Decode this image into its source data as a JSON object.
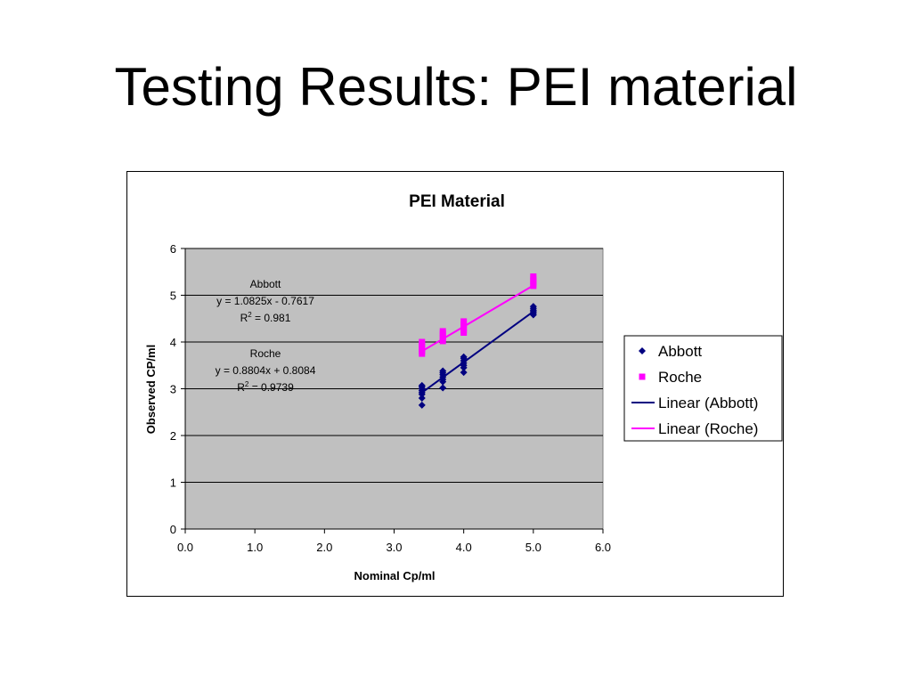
{
  "slide": {
    "title": "Testing Results: PEI material"
  },
  "chart_data": {
    "type": "scatter",
    "title": "PEI Material",
    "xlabel": "Nominal Cp/ml",
    "ylabel": "Observed CP/ml",
    "xlim": [
      0,
      6
    ],
    "ylim": [
      0,
      6
    ],
    "x_ticks": [
      "0.0",
      "1.0",
      "2.0",
      "3.0",
      "4.0",
      "5.0",
      "6.0"
    ],
    "y_ticks": [
      "0",
      "1",
      "2",
      "3",
      "4",
      "5",
      "6"
    ],
    "grid": "horizontal",
    "plot_background": "#c0c0c0",
    "legend_position": "right",
    "series": [
      {
        "name": "Abbott",
        "marker": "diamond",
        "color": "#000080",
        "points": [
          [
            3.4,
            2.65
          ],
          [
            3.4,
            2.8
          ],
          [
            3.4,
            2.88
          ],
          [
            3.4,
            2.92
          ],
          [
            3.4,
            2.96
          ],
          [
            3.4,
            3.0
          ],
          [
            3.4,
            3.04
          ],
          [
            3.4,
            3.07
          ],
          [
            3.7,
            3.02
          ],
          [
            3.7,
            3.15
          ],
          [
            3.7,
            3.2
          ],
          [
            3.7,
            3.25
          ],
          [
            3.7,
            3.3
          ],
          [
            3.7,
            3.34
          ],
          [
            3.7,
            3.38
          ],
          [
            4.0,
            3.35
          ],
          [
            4.0,
            3.45
          ],
          [
            4.0,
            3.5
          ],
          [
            4.0,
            3.55
          ],
          [
            4.0,
            3.6
          ],
          [
            4.0,
            3.65
          ],
          [
            4.0,
            3.68
          ],
          [
            5.0,
            4.58
          ],
          [
            5.0,
            4.62
          ],
          [
            5.0,
            4.65
          ],
          [
            5.0,
            4.68
          ],
          [
            5.0,
            4.72
          ],
          [
            5.0,
            4.76
          ]
        ]
      },
      {
        "name": "Roche",
        "marker": "square",
        "color": "#ff00ff",
        "points": [
          [
            3.4,
            3.75
          ],
          [
            3.4,
            3.8
          ],
          [
            3.4,
            3.85
          ],
          [
            3.4,
            3.9
          ],
          [
            3.4,
            3.95
          ],
          [
            3.4,
            4.0
          ],
          [
            3.7,
            4.02
          ],
          [
            3.7,
            4.08
          ],
          [
            3.7,
            4.13
          ],
          [
            3.7,
            4.18
          ],
          [
            3.7,
            4.23
          ],
          [
            4.0,
            4.2
          ],
          [
            4.0,
            4.26
          ],
          [
            4.0,
            4.32
          ],
          [
            4.0,
            4.38
          ],
          [
            4.0,
            4.44
          ],
          [
            5.0,
            5.2
          ],
          [
            5.0,
            5.25
          ],
          [
            5.0,
            5.3
          ],
          [
            5.0,
            5.35
          ],
          [
            5.0,
            5.4
          ]
        ]
      }
    ],
    "trendlines": [
      {
        "name": "Linear (Abbott)",
        "color": "#000080",
        "slope": 1.0825,
        "intercept": -0.7617,
        "x_range": [
          3.4,
          5.0
        ]
      },
      {
        "name": "Linear (Roche)",
        "color": "#ff00ff",
        "slope": 0.8804,
        "intercept": 0.8084,
        "x_range": [
          3.4,
          5.0
        ]
      }
    ],
    "annotations": [
      {
        "label": "Abbott",
        "equation": "y = 1.0825x - 0.7617",
        "r2_prefix": "R",
        "r2_sup": "2",
        "r2_value": " = 0.981"
      },
      {
        "label": "Roche",
        "equation": "y = 0.8804x + 0.8084",
        "r2_prefix": "R",
        "r2_sup": "2",
        "r2_value": " = 0.9739"
      }
    ],
    "legend": [
      "Abbott",
      "Roche",
      "Linear (Abbott)",
      "Linear (Roche)"
    ]
  }
}
